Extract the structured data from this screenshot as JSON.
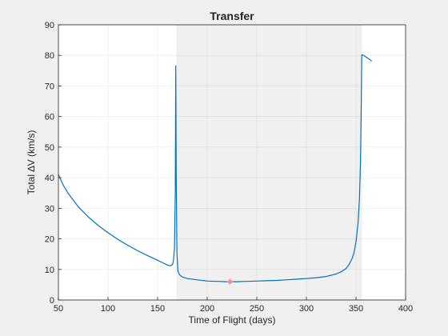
{
  "chart_data": {
    "type": "line",
    "title": "Transfer",
    "xlabel": "Time of Flight (days)",
    "ylabel": "Total ∆V (km/s)",
    "xlim": [
      50,
      400
    ],
    "ylim": [
      0,
      90
    ],
    "xticks": [
      "50",
      "100",
      "150",
      "200",
      "250",
      "300",
      "350",
      "400"
    ],
    "yticks": [
      "0",
      "10",
      "20",
      "30",
      "40",
      "50",
      "60",
      "70",
      "80",
      "90"
    ],
    "grid": true,
    "legend": "none",
    "shaded_region": {
      "x": [
        169,
        356
      ],
      "color": "#f0f0f0"
    },
    "series": [
      {
        "color": "#0072bd",
        "x": [
          50,
          55,
          60,
          70,
          80,
          90,
          100,
          110,
          120,
          130,
          140,
          150,
          155,
          160,
          163,
          165,
          166,
          167,
          167.8,
          168.3,
          168.8,
          169.5,
          170.5,
          172,
          175,
          180,
          190,
          200,
          210,
          220,
          230,
          240,
          250,
          260,
          270,
          280,
          290,
          300,
          310,
          320,
          330,
          335,
          340,
          343,
          346,
          348,
          350,
          352,
          353.5,
          354.5,
          355.2,
          355.8,
          356.5,
          360,
          363,
          366
        ],
        "y": [
          41,
          37.5,
          34.8,
          30.5,
          27.2,
          24.4,
          22,
          19.8,
          17.9,
          16.1,
          14.5,
          13,
          12.2,
          11.4,
          11.2,
          11.6,
          12.8,
          17,
          35,
          76.6,
          40,
          15,
          9.5,
          8.3,
          7.5,
          7,
          6.6,
          6.2,
          6.1,
          6.0,
          6.0,
          6.1,
          6.2,
          6.3,
          6.4,
          6.6,
          6.8,
          7.0,
          7.3,
          7.7,
          8.5,
          9.2,
          10.3,
          11.6,
          13.5,
          15.5,
          19,
          25,
          33,
          45,
          60,
          80.1,
          80.2,
          79.5,
          78.8,
          78.2
        ]
      },
      {
        "type": "scatter",
        "marker": "*",
        "color": "#ff7f7f",
        "x": [
          223
        ],
        "y": [
          6.0
        ]
      }
    ]
  }
}
